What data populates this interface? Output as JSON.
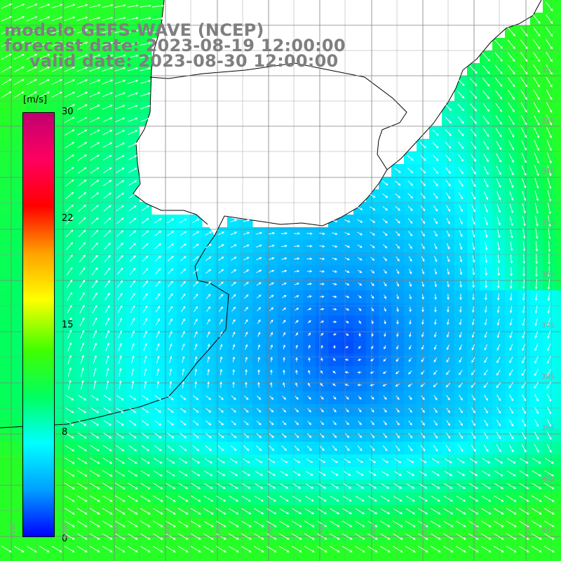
{
  "title": {
    "line1": "modelo GEFS-WAVE (NCEP)",
    "line2": "forecast date: 2023-08-19 12:00:00",
    "line3": "valid date: 2023-08-30 12:00:00"
  },
  "colorbar": {
    "unit": "[m/s]",
    "ticks": [
      "30",
      "22",
      "15",
      "8",
      "0"
    ],
    "tick_values": [
      30,
      22,
      15,
      8,
      0
    ],
    "range": [
      0,
      30
    ],
    "colors": [
      "#0000ff",
      "#00a0ff",
      "#00ffff",
      "#00ff60",
      "#40ff00",
      "#ffff00",
      "#ffa000",
      "#ff0000",
      "#ff0060",
      "#c00070"
    ]
  },
  "map": {
    "field": "wind speed with wind direction arrows",
    "land_color": "#ffffff",
    "coastline_color": "#000000",
    "grid_color": "#808080",
    "lat_labels": [
      "32S",
      "33S",
      "34S",
      "35S",
      "36S",
      "37S",
      "38S",
      "39S",
      "40S",
      "41S"
    ],
    "lat_values": [
      -32,
      -33,
      -34,
      -35,
      -36,
      -37,
      -38,
      -39,
      -40,
      -41
    ],
    "lon_labels": [
      "61W",
      "60W",
      "59W",
      "58W",
      "57W",
      "56W",
      "55W",
      "54W",
      "53W",
      "52W",
      "51W"
    ],
    "lon_values": [
      -61,
      -60,
      -59,
      -58,
      -57,
      -56,
      -55,
      -54,
      -53,
      -52,
      -51
    ]
  }
}
